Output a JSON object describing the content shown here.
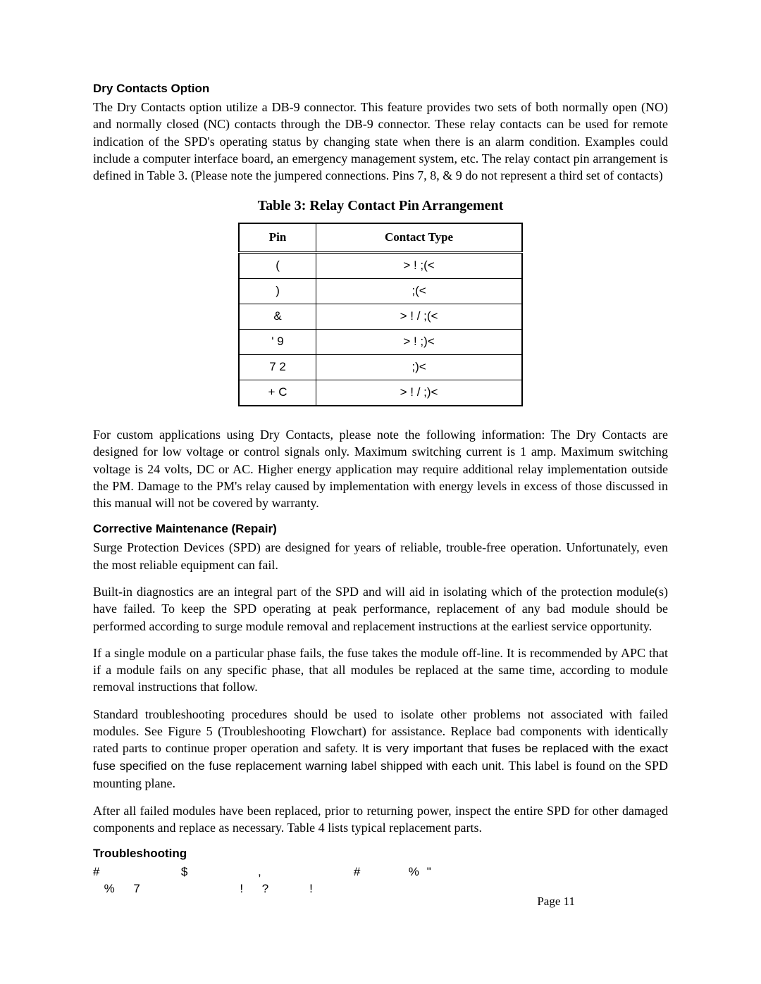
{
  "section1": {
    "heading": "Dry Contacts Option",
    "para": "The Dry Contacts option utilize a DB-9 connector. This feature provides two sets of both normally open (NO) and normally closed (NC) contacts through the DB-9 connector.  These relay contacts can be used for remote indication of the SPD's operating status by changing state when there is an alarm condition.  Examples could include a computer interface board, an emergency management system, etc.  The relay contact pin arrangement is defined in Table 3. (Please note the jumpered connections.  Pins 7, 8, & 9 do not represent a third set of contacts)"
  },
  "table": {
    "title": "Table 3: Relay Contact Pin Arrangement",
    "columns": [
      "Pin",
      "Contact Type"
    ],
    "rows": [
      [
        "(",
        ">     !      ;(<"
      ],
      [
        ")",
        ";(<"
      ],
      [
        "&",
        ">     ! /   ;(<"
      ],
      [
        "' 9",
        ">     !      ;)<"
      ],
      [
        "7 2",
        ";)<"
      ],
      [
        "+ C",
        ">     ! /   ;)<"
      ]
    ]
  },
  "para2": "For custom applications using Dry Contacts, please note the following information: The Dry Contacts are designed for low voltage or control signals only. Maximum switching current is 1 amp. Maximum switching voltage is 24 volts, DC or AC. Higher energy application may require additional relay implementation outside the PM.  Damage to the PM's relay caused by implementation with energy levels in excess of those discussed in this manual will not be covered by warranty.",
  "section2": {
    "heading": "Corrective Maintenance (Repair)",
    "p1": "Surge Protection Devices (SPD) are designed for years of reliable, trouble-free operation.  Unfortunately, even the most reliable equipment can fail.",
    "p2": "Built-in diagnostics are an integral part of the SPD and will aid in isolating which of the protection module(s) have failed. To keep the SPD operating at peak performance, replacement of any bad module should be performed according to surge module removal and replacement instructions at the earliest service opportunity.",
    "p3": "If a single module on a particular phase fails, the fuse takes the module off-line. It is recommended by APC that if a module fails on any specific phase, that all modules be replaced at the same time, according to module removal instructions that follow.",
    "p4a": "Standard troubleshooting procedures should be used to isolate other problems not associated with failed modules. See Figure 5 (Troubleshooting Flowchart) for assistance.  Replace bad components with identically rated parts to continue proper operation and safety.  ",
    "p4b": "It is very important that fuses be replaced with the exact fuse specified on the fuse replacement warning label shipped with each unit. ",
    "p4c": "This label is found on the SPD mounting plane.",
    "p5": "After all failed modules have been replaced, prior to returning power, inspect the entire SPD for other damaged components and replace as necessary.  Table 4 lists typical replacement parts."
  },
  "section3": {
    "heading": "Troubleshooting",
    "garbled": "#                      $                   ,                         #             %  \"\n   %     7                           !     ?           !"
  },
  "page_number": "Page 11"
}
